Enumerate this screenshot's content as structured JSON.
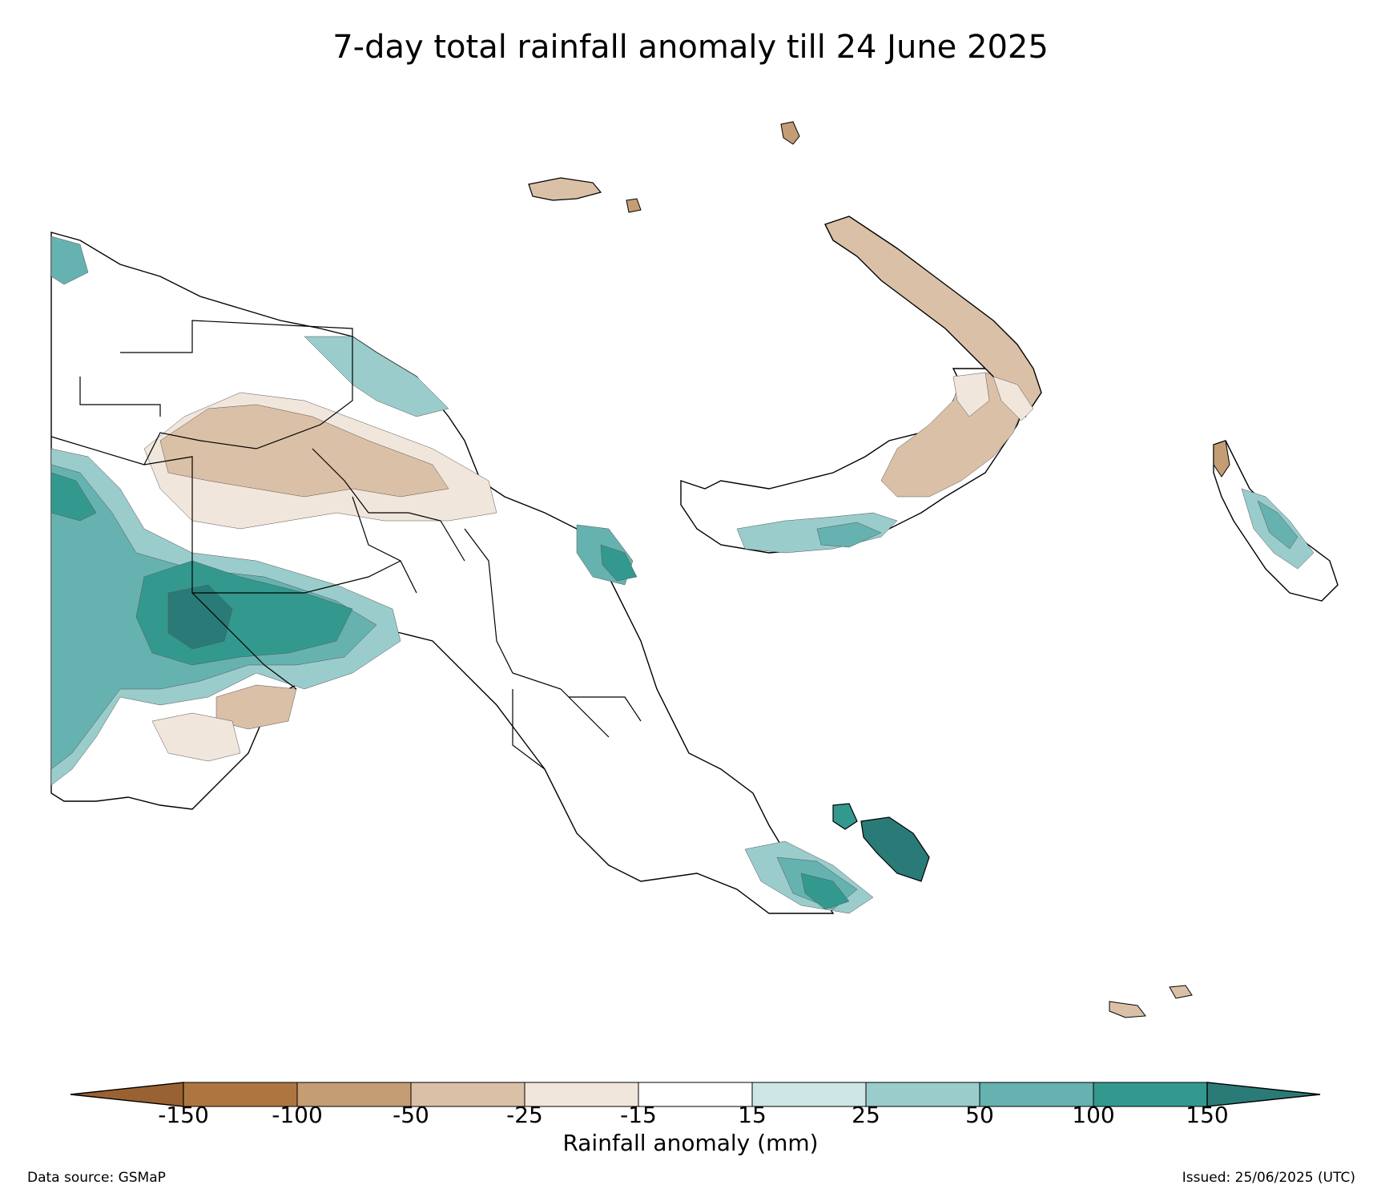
{
  "title": "7-day total rainfall anomaly till 24 June 2025",
  "colorbar": {
    "label": "Rainfall anomaly (mm)",
    "ticks": [
      "-150",
      "-100",
      "-50",
      "-25",
      "-15",
      "15",
      "25",
      "50",
      "100",
      "150"
    ],
    "colors": {
      "below_-150": "#9a6232",
      "-150_to_-100": "#ad7640",
      "-100_to_-50": "#c49d74",
      "-50_to_-25": "#dac0a6",
      "-25_to_-15": "#f1e6dc",
      "-15_to_15": "#ffffff",
      "15_to_25": "#cce6e5",
      "25_to_50": "#9acccb",
      "50_to_100": "#66b2b0",
      "100_to_150": "#33998f",
      "above_150": "#2a7b77"
    }
  },
  "footer": {
    "data_source": "Data source: GSMaP",
    "issued": "Issued: 25/06/2025 (UTC)"
  }
}
